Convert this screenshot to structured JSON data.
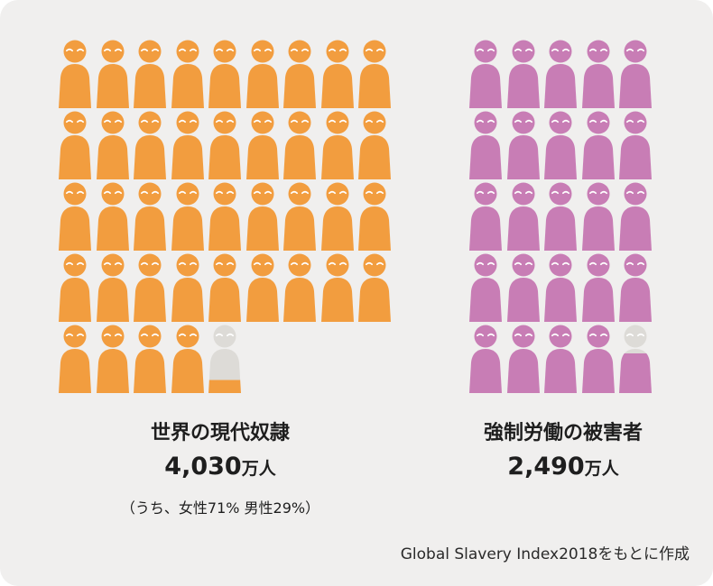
{
  "chart_data": {
    "type": "pictogram",
    "groups": [
      {
        "title": "世界の現代奴隷",
        "value": "4,030",
        "unit": "万人",
        "note": "（うち、女性71% 男性29%）",
        "icon_count": 40.3,
        "columns": 9,
        "color": "#f29d3f",
        "faded_color": "#dddbd7"
      },
      {
        "title": "強制労働の被害者",
        "value": "2,490",
        "unit": "万人",
        "note": "",
        "icon_count": 24.9,
        "columns": 5,
        "color": "#c87db5",
        "faded_color": "#dddbd7"
      }
    ],
    "icon": "person-icon"
  },
  "source": "Global Slavery Index2018をもとに作成"
}
